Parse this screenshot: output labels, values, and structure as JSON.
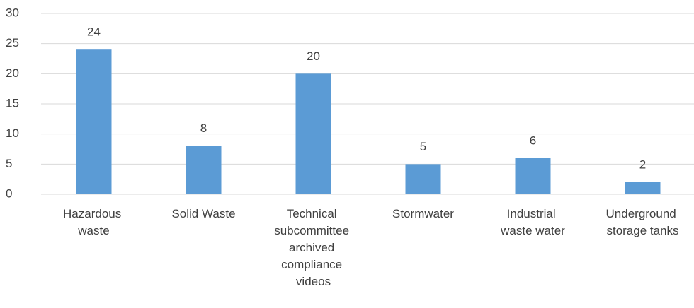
{
  "chart_data": {
    "type": "bar",
    "categories": [
      "Hazardous waste",
      "Solid Waste",
      "Technical subcommittee archived compliance videos",
      "Stormwater",
      "Industrial waste water",
      "Underground storage tanks"
    ],
    "values": [
      24,
      8,
      20,
      5,
      6,
      2
    ],
    "color": "#5b9bd5",
    "ylim": [
      0,
      30
    ],
    "yticks": [
      0,
      5,
      10,
      15,
      20,
      25,
      30
    ],
    "grid": true,
    "data_labels": true
  }
}
